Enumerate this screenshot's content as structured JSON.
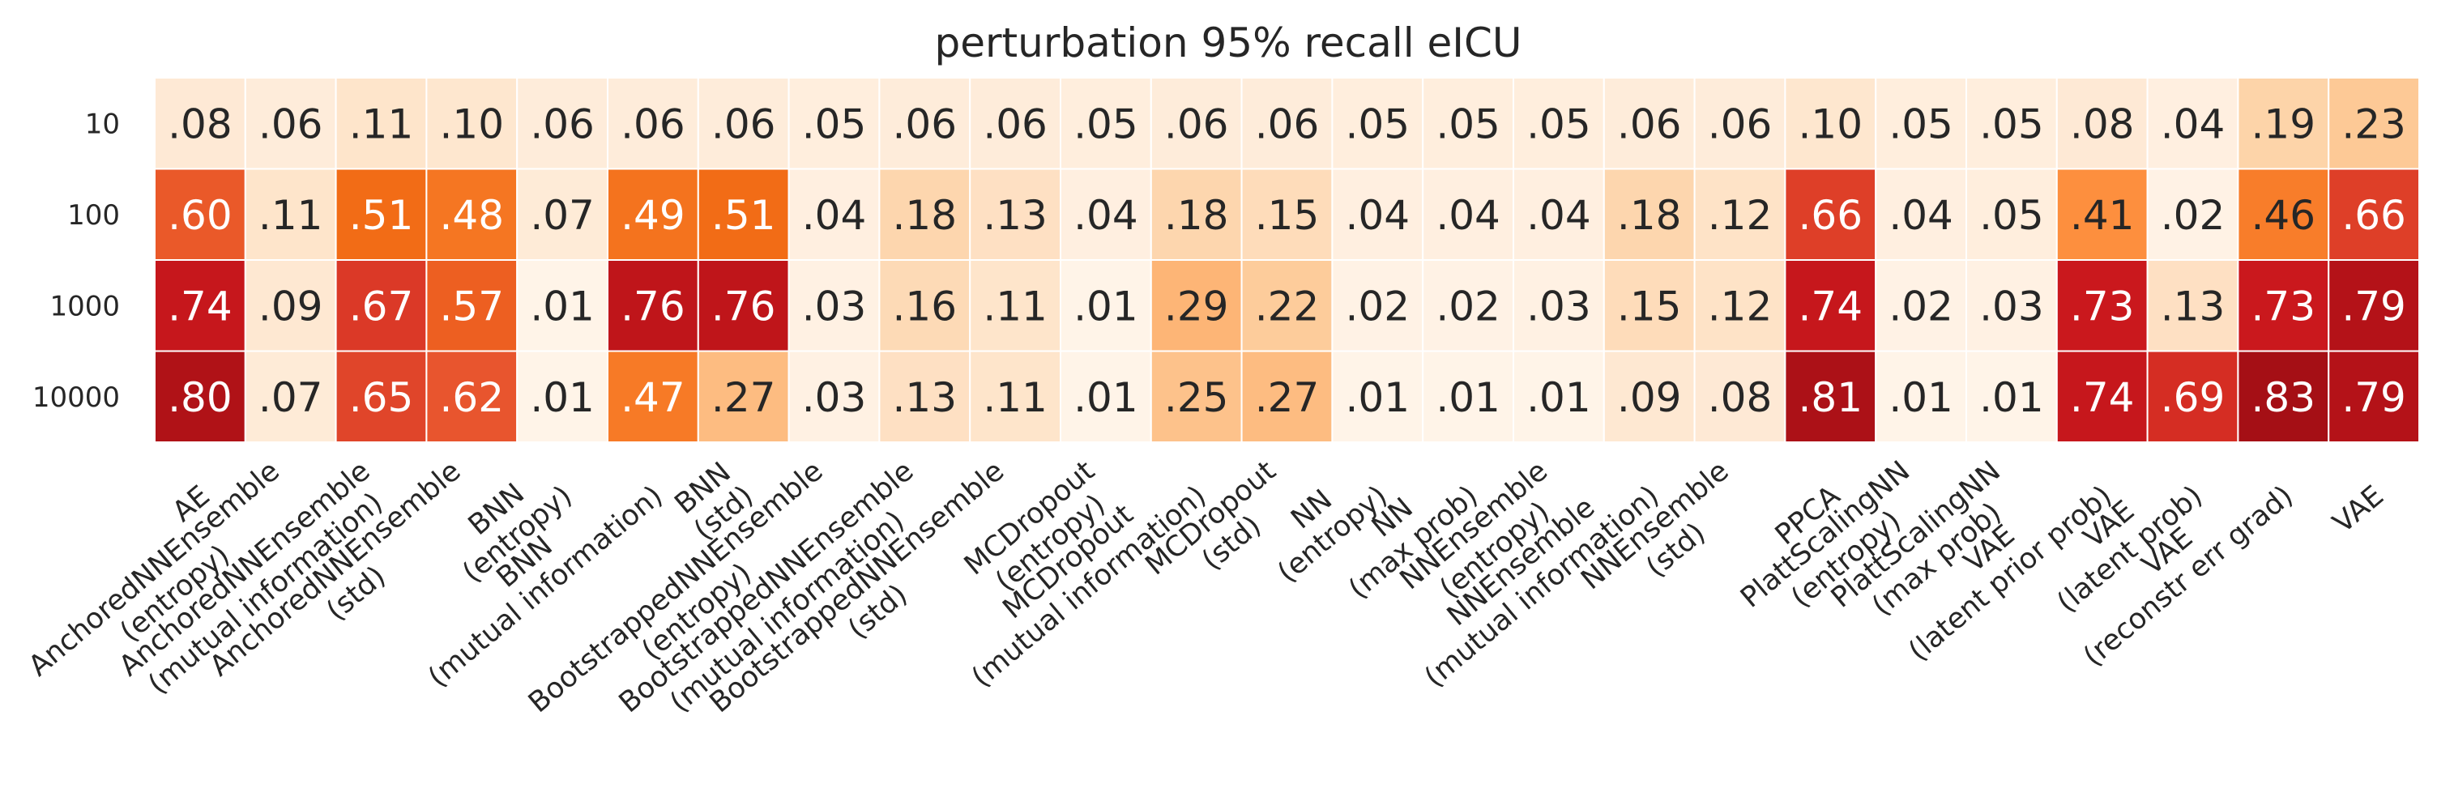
{
  "chart_data": {
    "type": "heatmap",
    "title": "perturbation 95% recall eICU",
    "rows": [
      "10",
      "100",
      "1000",
      "10000"
    ],
    "columns": [
      "AE",
      "AnchoredNNEnsemble\n(entropy)",
      "AnchoredNNEnsemble\n(mutual information)",
      "AnchoredNNEnsemble\n(std)",
      "BNN\n(entropy)",
      "BNN\n(mutual information)",
      "BNN\n(std)",
      "BootstrappedNNEnsemble\n(entropy)",
      "BootstrappedNNEnsemble\n(mutual information)",
      "BootstrappedNNEnsemble\n(std)",
      "MCDropout\n(entropy)",
      "MCDropout\n(mutual information)",
      "MCDropout\n(std)",
      "NN\n(entropy)",
      "NN\n(max prob)",
      "NNEnsemble\n(entropy)",
      "NNEnsemble\n(mutual information)",
      "NNEnsemble\n(std)",
      "PPCA",
      "PlattScalingNN\n(entropy)",
      "PlattScalingNN\n(max prob)",
      "VAE\n(latent prior prob)",
      "VAE\n(latent prob)",
      "VAE\n(reconstr err grad)",
      "VAE"
    ],
    "values": [
      [
        0.08,
        0.06,
        0.11,
        0.1,
        0.06,
        0.06,
        0.06,
        0.05,
        0.06,
        0.06,
        0.05,
        0.06,
        0.06,
        0.05,
        0.05,
        0.05,
        0.06,
        0.06,
        0.1,
        0.05,
        0.05,
        0.08,
        0.04,
        0.19,
        0.23
      ],
      [
        0.6,
        0.11,
        0.51,
        0.48,
        0.07,
        0.49,
        0.51,
        0.04,
        0.18,
        0.13,
        0.04,
        0.18,
        0.15,
        0.04,
        0.04,
        0.04,
        0.18,
        0.12,
        0.66,
        0.04,
        0.05,
        0.41,
        0.02,
        0.46,
        0.66
      ],
      [
        0.74,
        0.09,
        0.67,
        0.57,
        0.01,
        0.76,
        0.76,
        0.03,
        0.16,
        0.11,
        0.01,
        0.29,
        0.22,
        0.02,
        0.02,
        0.03,
        0.15,
        0.12,
        0.74,
        0.02,
        0.03,
        0.73,
        0.13,
        0.73,
        0.79
      ],
      [
        0.8,
        0.07,
        0.65,
        0.62,
        0.01,
        0.47,
        0.27,
        0.03,
        0.13,
        0.11,
        0.01,
        0.25,
        0.27,
        0.01,
        0.01,
        0.01,
        0.09,
        0.08,
        0.81,
        0.01,
        0.01,
        0.74,
        0.69,
        0.83,
        0.79
      ]
    ],
    "labels": [
      [
        ".08",
        ".06",
        ".11",
        ".10",
        ".06",
        ".06",
        ".06",
        ".05",
        ".06",
        ".06",
        ".05",
        ".06",
        ".06",
        ".05",
        ".05",
        ".05",
        ".06",
        ".06",
        ".10",
        ".05",
        ".05",
        ".08",
        ".04",
        ".19",
        ".23"
      ],
      [
        ".60",
        ".11",
        ".51",
        ".48",
        ".07",
        ".49",
        ".51",
        ".04",
        ".18",
        ".13",
        ".04",
        ".18",
        ".15",
        ".04",
        ".04",
        ".04",
        ".18",
        ".12",
        ".66",
        ".04",
        ".05",
        ".41",
        ".02",
        ".46",
        ".66"
      ],
      [
        ".74",
        ".09",
        ".67",
        ".57",
        ".01",
        ".76",
        ".76",
        ".03",
        ".16",
        ".11",
        ".01",
        ".29",
        ".22",
        ".02",
        ".02",
        ".03",
        ".15",
        ".12",
        ".74",
        ".02",
        ".03",
        ".73",
        ".13",
        ".73",
        ".79"
      ],
      [
        ".80",
        ".07",
        ".65",
        ".62",
        ".01",
        ".47",
        ".27",
        ".03",
        ".13",
        ".11",
        ".01",
        ".25",
        ".27",
        ".01",
        ".01",
        ".01",
        ".09",
        ".08",
        ".81",
        ".01",
        ".01",
        ".74",
        ".69",
        ".83",
        ".79"
      ]
    ],
    "value_range": [
      0,
      0.83
    ],
    "colormap": [
      "#fff5eb",
      "#fee6ce",
      "#fdd0a2",
      "#fdae6b",
      "#fd8d3c",
      "#f16913",
      "#e8552f",
      "#cb181d",
      "#a50f15"
    ],
    "text_colors": {
      "dark": "#262626",
      "light": "#ffffff"
    },
    "cell_border_color": "#ffffff",
    "colorbar": false,
    "grid": false,
    "xlabel": "",
    "ylabel": ""
  }
}
